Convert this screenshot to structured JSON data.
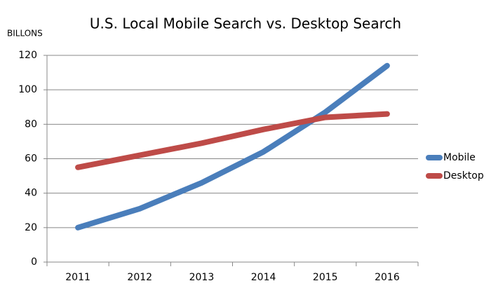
{
  "chart_data": {
    "type": "line",
    "title": "U.S. Local Mobile Search vs. Desktop Search",
    "y_label": "BILLONS",
    "categories": [
      "2011",
      "2012",
      "2013",
      "2014",
      "2015",
      "2016"
    ],
    "series": [
      {
        "name": "Mobile",
        "color": "#4a7ebb",
        "values": [
          20,
          31,
          46,
          64,
          87,
          114
        ]
      },
      {
        "name": "Desktop",
        "color": "#be4b48",
        "values": [
          55,
          62,
          69,
          77,
          84,
          86
        ]
      }
    ],
    "ylim": [
      0,
      120
    ],
    "yticks": [
      0,
      20,
      40,
      60,
      80,
      100,
      120
    ],
    "grid": true,
    "legend": "right"
  }
}
